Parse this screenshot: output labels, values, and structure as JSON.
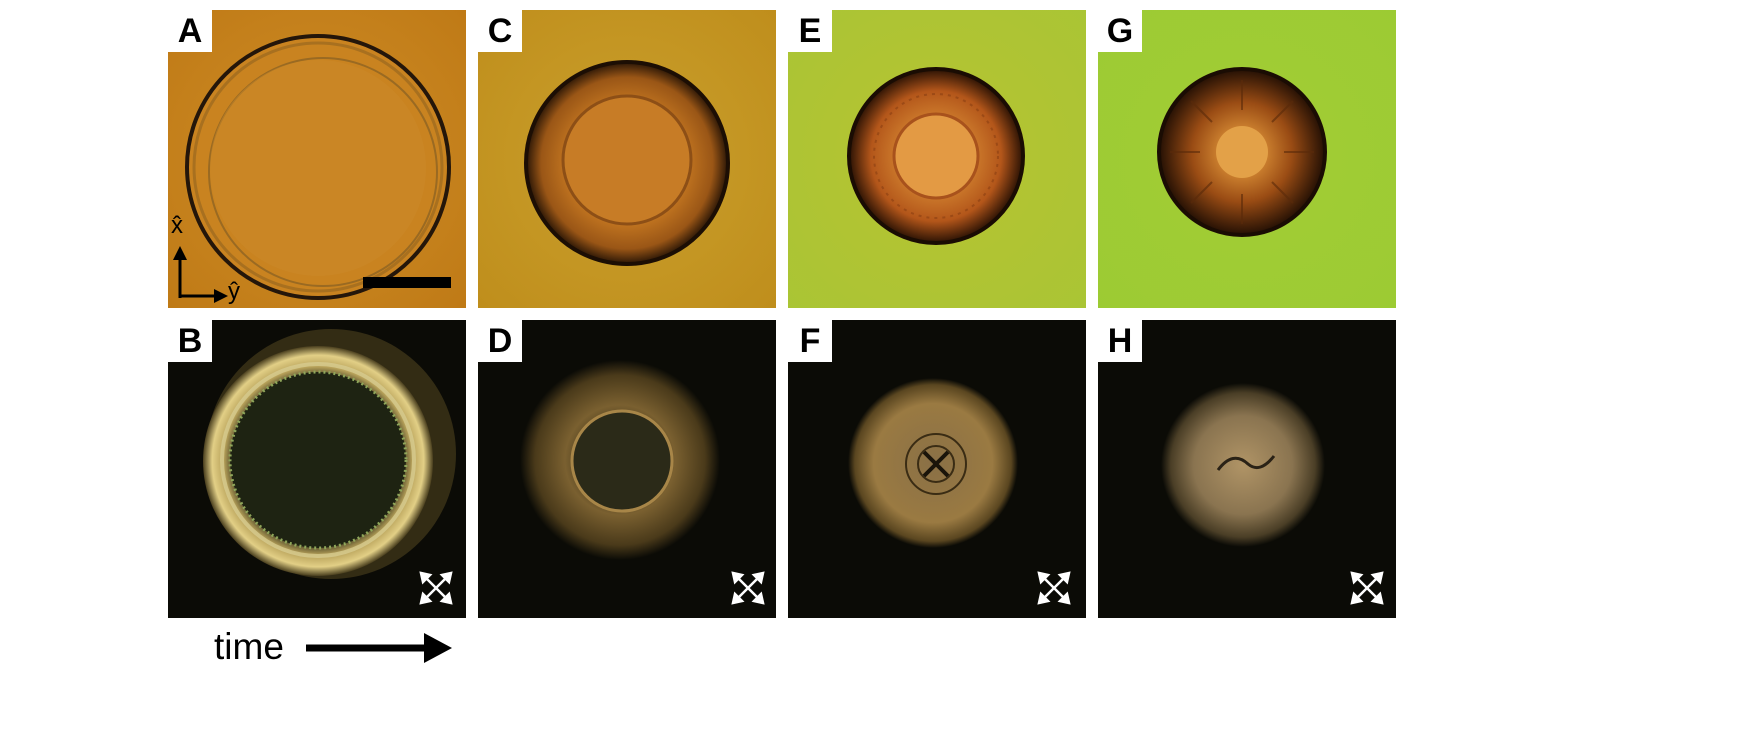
{
  "figure": {
    "panels": [
      {
        "id": "A",
        "label": "A",
        "kind": "brightfield"
      },
      {
        "id": "B",
        "label": "B",
        "kind": "polarized"
      },
      {
        "id": "C",
        "label": "C",
        "kind": "brightfield"
      },
      {
        "id": "D",
        "label": "D",
        "kind": "polarized"
      },
      {
        "id": "E",
        "label": "E",
        "kind": "brightfield"
      },
      {
        "id": "F",
        "label": "F",
        "kind": "polarized"
      },
      {
        "id": "G",
        "label": "G",
        "kind": "brightfield"
      },
      {
        "id": "H",
        "label": "H",
        "kind": "polarized"
      }
    ],
    "axes": {
      "x_label": "x̂",
      "y_label": "ŷ"
    },
    "time_label": "time",
    "colors": {
      "amber_background": "#c8861e",
      "yellow_green_background": "#a7c83a",
      "dark_background": "#0b0b06",
      "droplet_rim": "#1e1005"
    },
    "icons": {
      "scale_bar": "scale-bar",
      "crossed_polarizers": "crossed-polarizers-icon",
      "time_arrow": "arrow-right-icon"
    }
  }
}
